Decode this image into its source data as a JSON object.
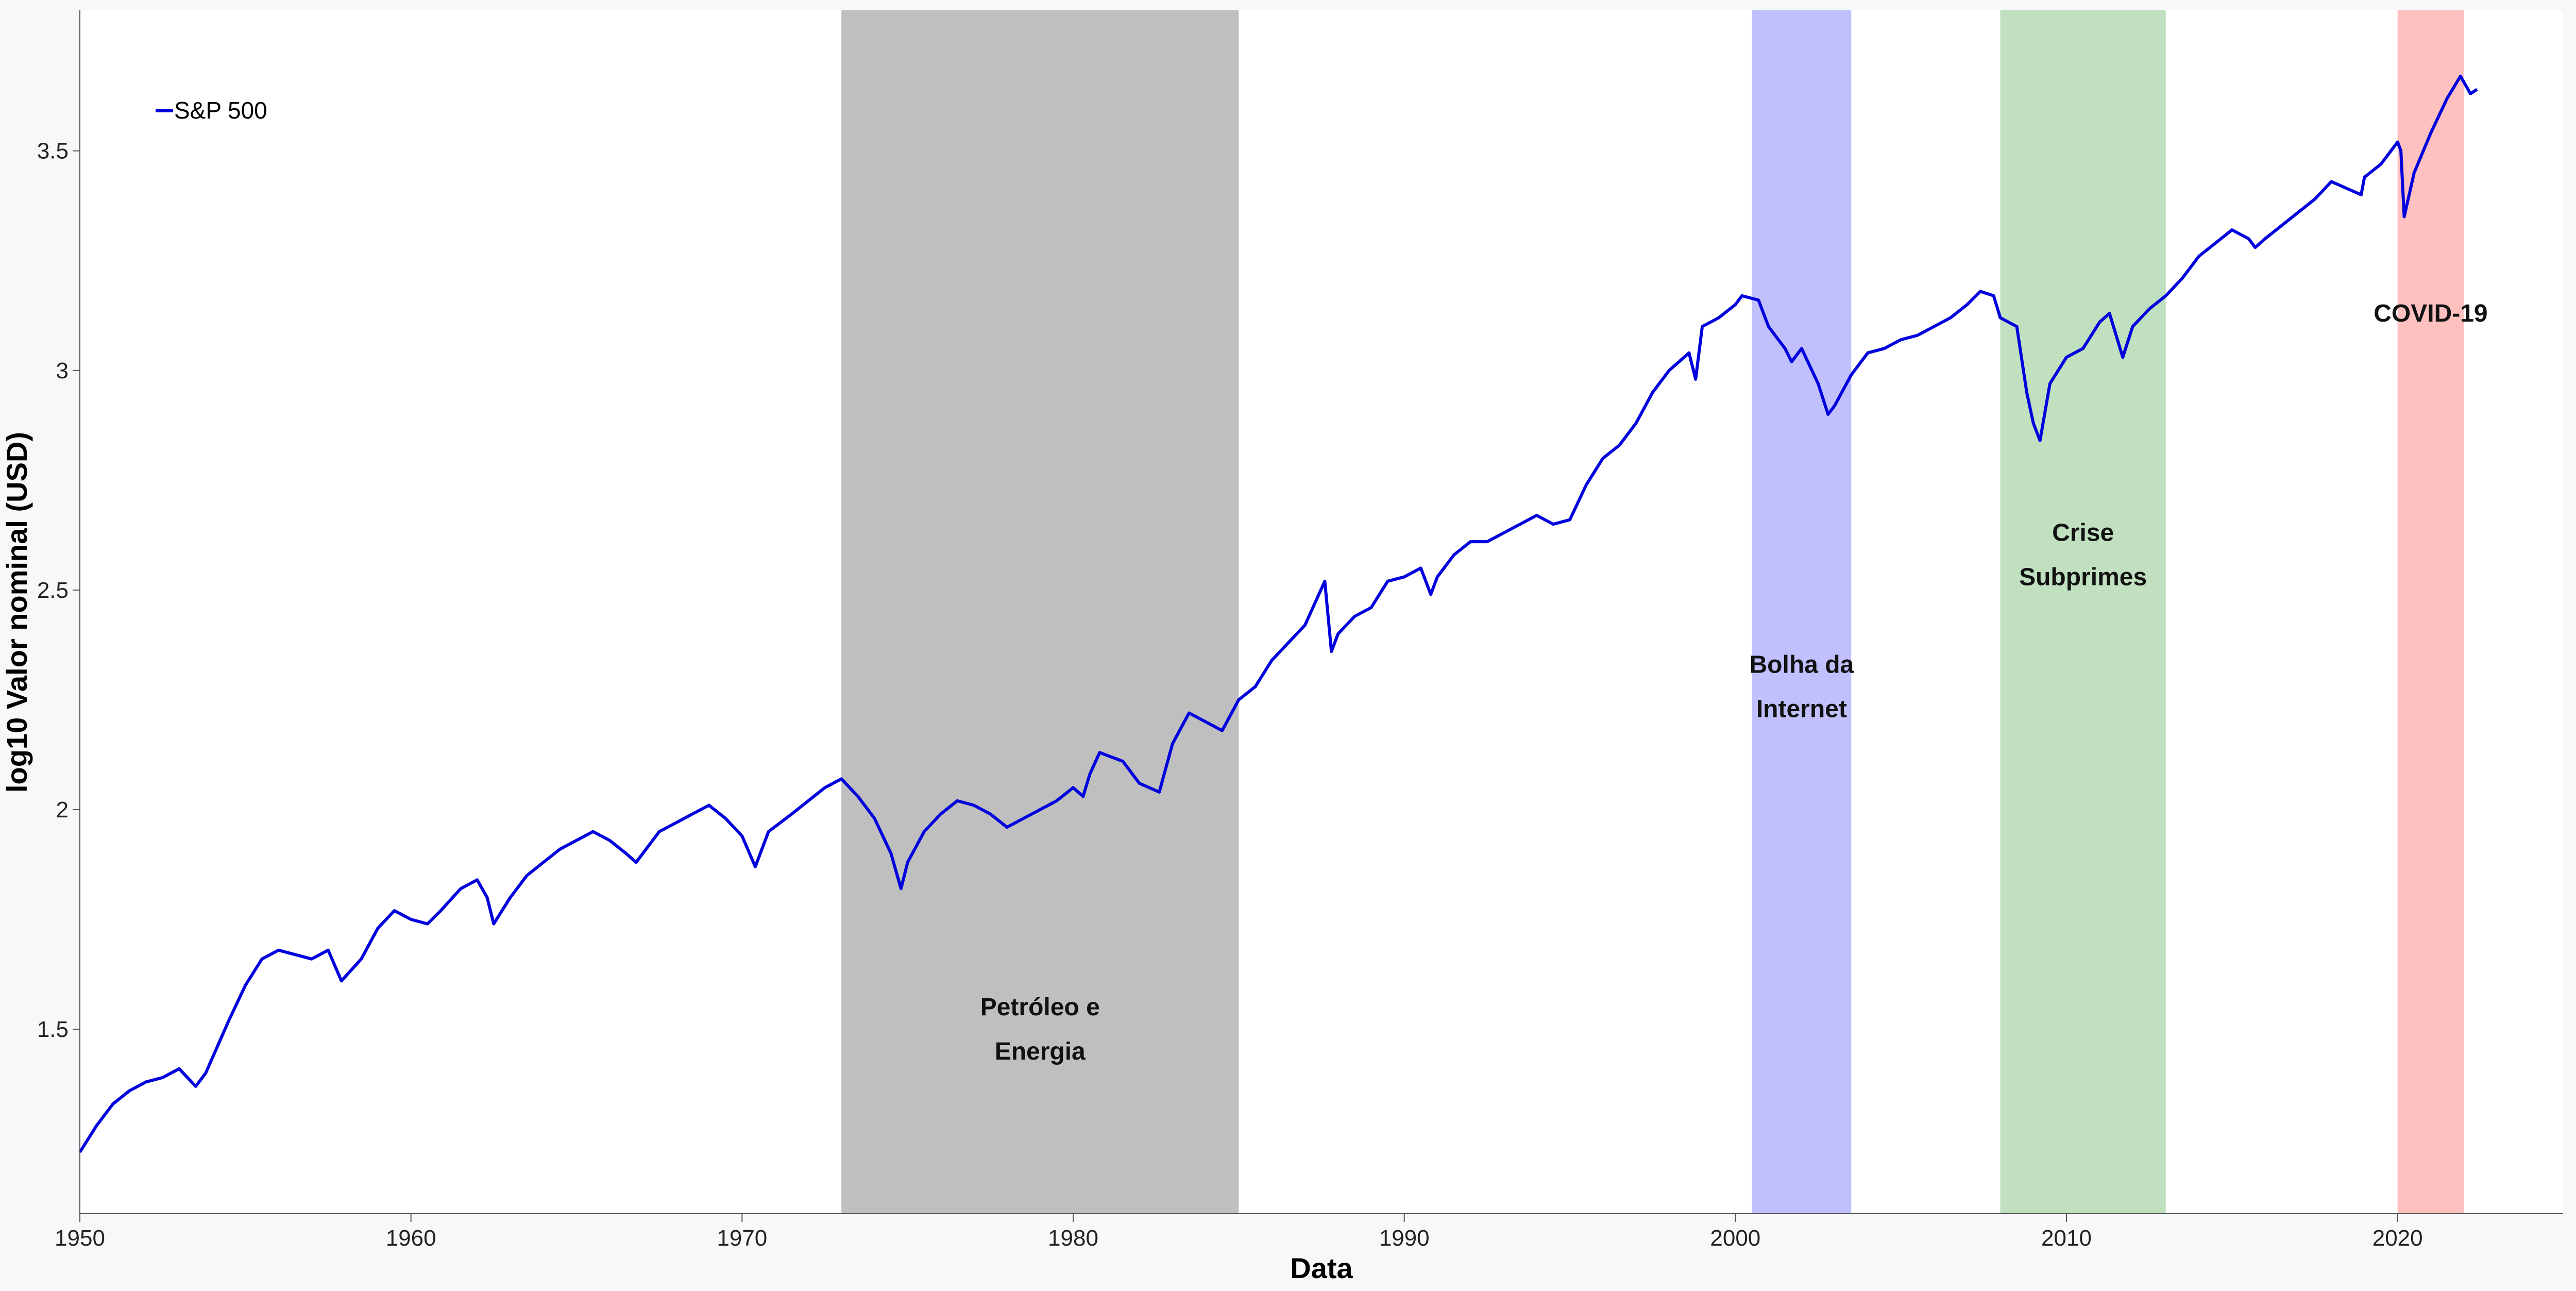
{
  "chart_data": {
    "type": "line",
    "title": "",
    "xlabel": "Data",
    "ylabel": "log10 Valor nominal (USD)",
    "xlim": [
      1950,
      2025
    ],
    "ylim": [
      1.08,
      3.82
    ],
    "x_ticks": [
      1950,
      1960,
      1970,
      1980,
      1990,
      2000,
      2010,
      2020
    ],
    "y_ticks": [
      1.5,
      2,
      2.5,
      3,
      3.5
    ],
    "y_tick_labels": [
      "1.5",
      "2",
      "2.5",
      "3",
      "3.5"
    ],
    "grid": false,
    "legend_position": "top-left",
    "series": [
      {
        "name": "S&P 500",
        "color": "#0000dd",
        "x": [
          1950.0,
          1950.5,
          1951.0,
          1951.5,
          1952.0,
          1952.5,
          1953.0,
          1953.5,
          1953.8,
          1954.5,
          1955.0,
          1955.5,
          1956.0,
          1956.5,
          1957.0,
          1957.5,
          1957.9,
          1958.5,
          1959.0,
          1959.5,
          1960.0,
          1960.5,
          1960.9,
          1961.5,
          1962.0,
          1962.3,
          1962.5,
          1963.0,
          1963.5,
          1964.0,
          1964.5,
          1965.0,
          1965.5,
          1966.0,
          1966.5,
          1966.8,
          1967.5,
          1968.0,
          1968.5,
          1969.0,
          1969.5,
          1970.0,
          1970.4,
          1970.8,
          1971.5,
          1972.0,
          1972.5,
          1973.0,
          1973.5,
          1974.0,
          1974.5,
          1974.8,
          1975.0,
          1975.5,
          1976.0,
          1976.5,
          1977.0,
          1977.5,
          1978.0,
          1978.5,
          1979.0,
          1979.5,
          1980.0,
          1980.3,
          1980.5,
          1980.8,
          1981.5,
          1982.0,
          1982.6,
          1983.0,
          1983.5,
          1984.0,
          1984.5,
          1985.0,
          1985.5,
          1986.0,
          1986.5,
          1987.0,
          1987.6,
          1987.8,
          1988.0,
          1988.5,
          1989.0,
          1989.5,
          1990.0,
          1990.5,
          1990.8,
          1991.0,
          1991.5,
          1992.0,
          1992.5,
          1993.0,
          1993.5,
          1994.0,
          1994.5,
          1995.0,
          1995.5,
          1996.0,
          1996.5,
          1997.0,
          1997.5,
          1998.0,
          1998.6,
          1998.8,
          1999.0,
          1999.5,
          2000.0,
          2000.2,
          2000.7,
          2001.0,
          2001.5,
          2001.7,
          2002.0,
          2002.5,
          2002.8,
          2003.0,
          2003.5,
          2004.0,
          2004.5,
          2005.0,
          2005.5,
          2006.0,
          2006.5,
          2007.0,
          2007.4,
          2007.8,
          2008.0,
          2008.5,
          2008.8,
          2009.0,
          2009.2,
          2009.5,
          2010.0,
          2010.5,
          2011.0,
          2011.3,
          2011.7,
          2012.0,
          2012.5,
          2013.0,
          2013.5,
          2014.0,
          2014.5,
          2015.0,
          2015.5,
          2015.7,
          2016.0,
          2016.5,
          2017.0,
          2017.5,
          2018.0,
          2018.9,
          2019.0,
          2019.5,
          2020.0,
          2020.1,
          2020.2,
          2020.5,
          2021.0,
          2021.5,
          2021.9,
          2022.2,
          2022.4
        ],
        "values": [
          1.22,
          1.28,
          1.33,
          1.36,
          1.38,
          1.39,
          1.41,
          1.37,
          1.4,
          1.52,
          1.6,
          1.66,
          1.68,
          1.67,
          1.66,
          1.68,
          1.61,
          1.66,
          1.73,
          1.77,
          1.75,
          1.74,
          1.77,
          1.82,
          1.84,
          1.8,
          1.74,
          1.8,
          1.85,
          1.88,
          1.91,
          1.93,
          1.95,
          1.93,
          1.9,
          1.88,
          1.95,
          1.97,
          1.99,
          2.01,
          1.98,
          1.94,
          1.87,
          1.95,
          1.99,
          2.02,
          2.05,
          2.07,
          2.03,
          1.98,
          1.9,
          1.82,
          1.88,
          1.95,
          1.99,
          2.02,
          2.01,
          1.99,
          1.96,
          1.98,
          2.0,
          2.02,
          2.05,
          2.03,
          2.08,
          2.13,
          2.11,
          2.06,
          2.04,
          2.15,
          2.22,
          2.2,
          2.18,
          2.25,
          2.28,
          2.34,
          2.38,
          2.42,
          2.52,
          2.36,
          2.4,
          2.44,
          2.46,
          2.52,
          2.53,
          2.55,
          2.49,
          2.53,
          2.58,
          2.61,
          2.61,
          2.63,
          2.65,
          2.67,
          2.65,
          2.66,
          2.74,
          2.8,
          2.83,
          2.88,
          2.95,
          3.0,
          3.04,
          2.98,
          3.1,
          3.12,
          3.15,
          3.17,
          3.16,
          3.1,
          3.05,
          3.02,
          3.05,
          2.97,
          2.9,
          2.92,
          2.99,
          3.04,
          3.05,
          3.07,
          3.08,
          3.1,
          3.12,
          3.15,
          3.18,
          3.17,
          3.12,
          3.1,
          2.95,
          2.88,
          2.84,
          2.97,
          3.03,
          3.05,
          3.11,
          3.13,
          3.03,
          3.1,
          3.14,
          3.17,
          3.21,
          3.26,
          3.29,
          3.32,
          3.3,
          3.28,
          3.3,
          3.33,
          3.36,
          3.39,
          3.43,
          3.4,
          3.44,
          3.47,
          3.52,
          3.5,
          3.35,
          3.45,
          3.54,
          3.62,
          3.67,
          3.63,
          3.64
        ]
      }
    ],
    "regions": [
      {
        "start": 1973.0,
        "end": 1985.0,
        "color": "#bfbfbf",
        "label_lines": [
          "Petróleo e",
          "Energia"
        ],
        "label_y": 1.5
      },
      {
        "start": 2000.5,
        "end": 2003.5,
        "color": "#c0c0ff",
        "label_lines": [
          "Bolha da",
          "Internet"
        ],
        "label_y": 2.28
      },
      {
        "start": 2008.0,
        "end": 2013.0,
        "color": "#c0e0c0",
        "label_lines": [
          "Crise",
          "Subprimes"
        ],
        "label_y": 2.58
      },
      {
        "start": 2020.0,
        "end": 2022.0,
        "color": "#ffc0c0",
        "label_lines": [
          "COVID-19"
        ],
        "label_y": 3.13
      }
    ]
  }
}
